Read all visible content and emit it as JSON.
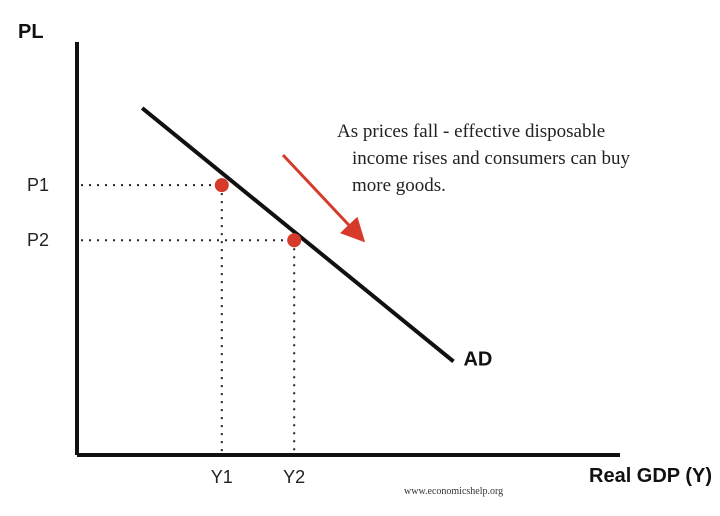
{
  "chart_data": {
    "type": "line",
    "xlabel": "Real GDP (Y)",
    "ylabel": "PL",
    "series": [
      {
        "name": "AD",
        "x": [
          0.9,
          5.2
        ],
        "y": [
          6.3,
          1.7
        ]
      }
    ],
    "points": [
      {
        "label_x": "Y1",
        "label_y": "P1",
        "x": 2.0,
        "y": 4.9
      },
      {
        "label_x": "Y2",
        "label_y": "P2",
        "x": 3.0,
        "y": 3.9
      }
    ],
    "xlim": [
      0,
      7.5
    ],
    "ylim": [
      0,
      7.5
    ],
    "grid": false,
    "annotation": {
      "lines": [
        "As prices fall - effective disposable",
        "income rises and consumers can buy",
        "more goods."
      ]
    },
    "arrow_direction": "down-right",
    "watermark": "www.economicshelp.org",
    "colors": {
      "curve": "#111111",
      "points": "#d63a2a",
      "arrow": "#d63a2a"
    }
  }
}
